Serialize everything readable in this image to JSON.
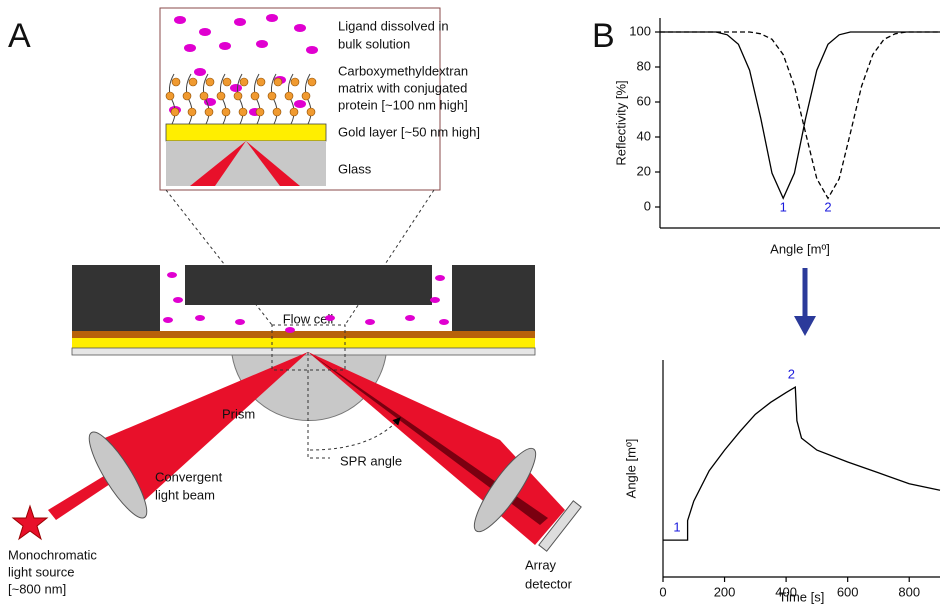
{
  "panel_labels": [
    "A",
    "B"
  ],
  "inset": [
    "Ligand dissolved in",
    "bulk solution",
    "Carboxymethyldextran",
    "matrix with conjugated",
    "protein [~100 nm high]",
    "Gold layer [~50 nm high]",
    "Glass"
  ],
  "labels": {
    "flow_cell": "Flow cell",
    "prism": "Prism",
    "spr_angle": "SPR angle",
    "beam": [
      "Convergent",
      "light beam"
    ],
    "source": [
      "Monochromatic",
      "light source",
      "[~800 nm]"
    ],
    "detector": [
      "Array",
      "detector"
    ]
  },
  "chart_data": [
    {
      "type": "line",
      "xlabel": "Angle [mº]",
      "ylabel": "Reflectivity [%]",
      "xlim": [
        0,
        100
      ],
      "ylim": [
        -12,
        108
      ],
      "yticks": [
        0,
        20,
        40,
        60,
        80,
        100
      ],
      "x": [
        0,
        4,
        8,
        12,
        16,
        20,
        24,
        28,
        32,
        36,
        40,
        44,
        48,
        52,
        56,
        60,
        64,
        68,
        72,
        76,
        80,
        84,
        88,
        92,
        96,
        100
      ],
      "series": [
        {
          "color": "#000000",
          "style": "solid",
          "values": [
            100,
            100,
            100,
            100,
            100,
            100,
            98.4,
            93,
            78.2,
            50.6,
            19.3,
            5,
            19.3,
            50.6,
            78.2,
            93,
            98.4,
            100,
            100,
            100,
            100,
            100,
            100,
            100,
            100,
            100
          ]
        },
        {
          "color": "#000000",
          "style": "dashed",
          "values": [
            100,
            100,
            100,
            100,
            100,
            100,
            100,
            100,
            100,
            99,
            95.8,
            87.1,
            69.1,
            42.3,
            16.2,
            5,
            16.2,
            42.3,
            69.1,
            87.1,
            95.8,
            99,
            100,
            100,
            100,
            100
          ]
        }
      ],
      "annotations": [
        "1",
        "2"
      ],
      "annotation_color": "#1a1adc"
    },
    {
      "type": "line",
      "xlabel": "Time [s]",
      "ylabel": "Angle [mº]",
      "xlim": [
        0,
        900
      ],
      "ylim": [
        0,
        100
      ],
      "xticks": [
        0,
        200,
        400,
        600,
        800
      ],
      "x": [
        0,
        40,
        80,
        80,
        100,
        150,
        200,
        250,
        300,
        350,
        400,
        430,
        435,
        450,
        500,
        600,
        700,
        800,
        900
      ],
      "series": [
        {
          "color": "#000000",
          "style": "solid",
          "values": [
            17,
            17,
            17,
            26,
            35,
            49,
            58.5,
            67,
            75,
            80.5,
            85,
            87.5,
            72,
            64,
            58.5,
            53,
            48,
            43,
            40
          ]
        }
      ],
      "annotations": [
        "1",
        "2"
      ],
      "annotation_color": "#1a1adc"
    }
  ]
}
